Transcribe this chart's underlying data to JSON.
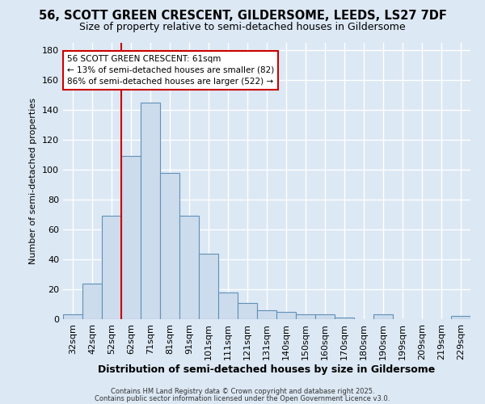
{
  "title1": "56, SCOTT GREEN CRESCENT, GILDERSOME, LEEDS, LS27 7DF",
  "title2": "Size of property relative to semi-detached houses in Gildersome",
  "xlabel": "Distribution of semi-detached houses by size in Gildersome",
  "ylabel": "Number of semi-detached properties",
  "categories": [
    "32sqm",
    "42sqm",
    "52sqm",
    "62sqm",
    "71sqm",
    "81sqm",
    "91sqm",
    "101sqm",
    "111sqm",
    "121sqm",
    "131sqm",
    "140sqm",
    "150sqm",
    "160sqm",
    "170sqm",
    "180sqm",
    "190sqm",
    "199sqm",
    "209sqm",
    "219sqm",
    "229sqm"
  ],
  "values": [
    3,
    24,
    69,
    109,
    145,
    98,
    69,
    44,
    18,
    11,
    6,
    5,
    3,
    3,
    1,
    0,
    3,
    0,
    0,
    0,
    2
  ],
  "bar_color": "#ccdcec",
  "bar_edge_color": "#6090b8",
  "subject_line_color": "#cc0000",
  "annotation_line1": "56 SCOTT GREEN CRESCENT: 61sqm",
  "annotation_line2": "← 13% of semi-detached houses are smaller (82)",
  "annotation_line3": "86% of semi-detached houses are larger (522) →",
  "annotation_box_edge": "#cc0000",
  "annotation_box_face": "#ffffff",
  "footer1": "Contains HM Land Registry data © Crown copyright and database right 2025.",
  "footer2": "Contains public sector information licensed under the Open Government Licence v3.0.",
  "ylim": [
    0,
    185
  ],
  "background_color": "#dce8f4",
  "grid_color": "#ffffff",
  "title1_fontsize": 10.5,
  "title2_fontsize": 9,
  "bar_width": 1.0,
  "subject_bar_index": 3
}
